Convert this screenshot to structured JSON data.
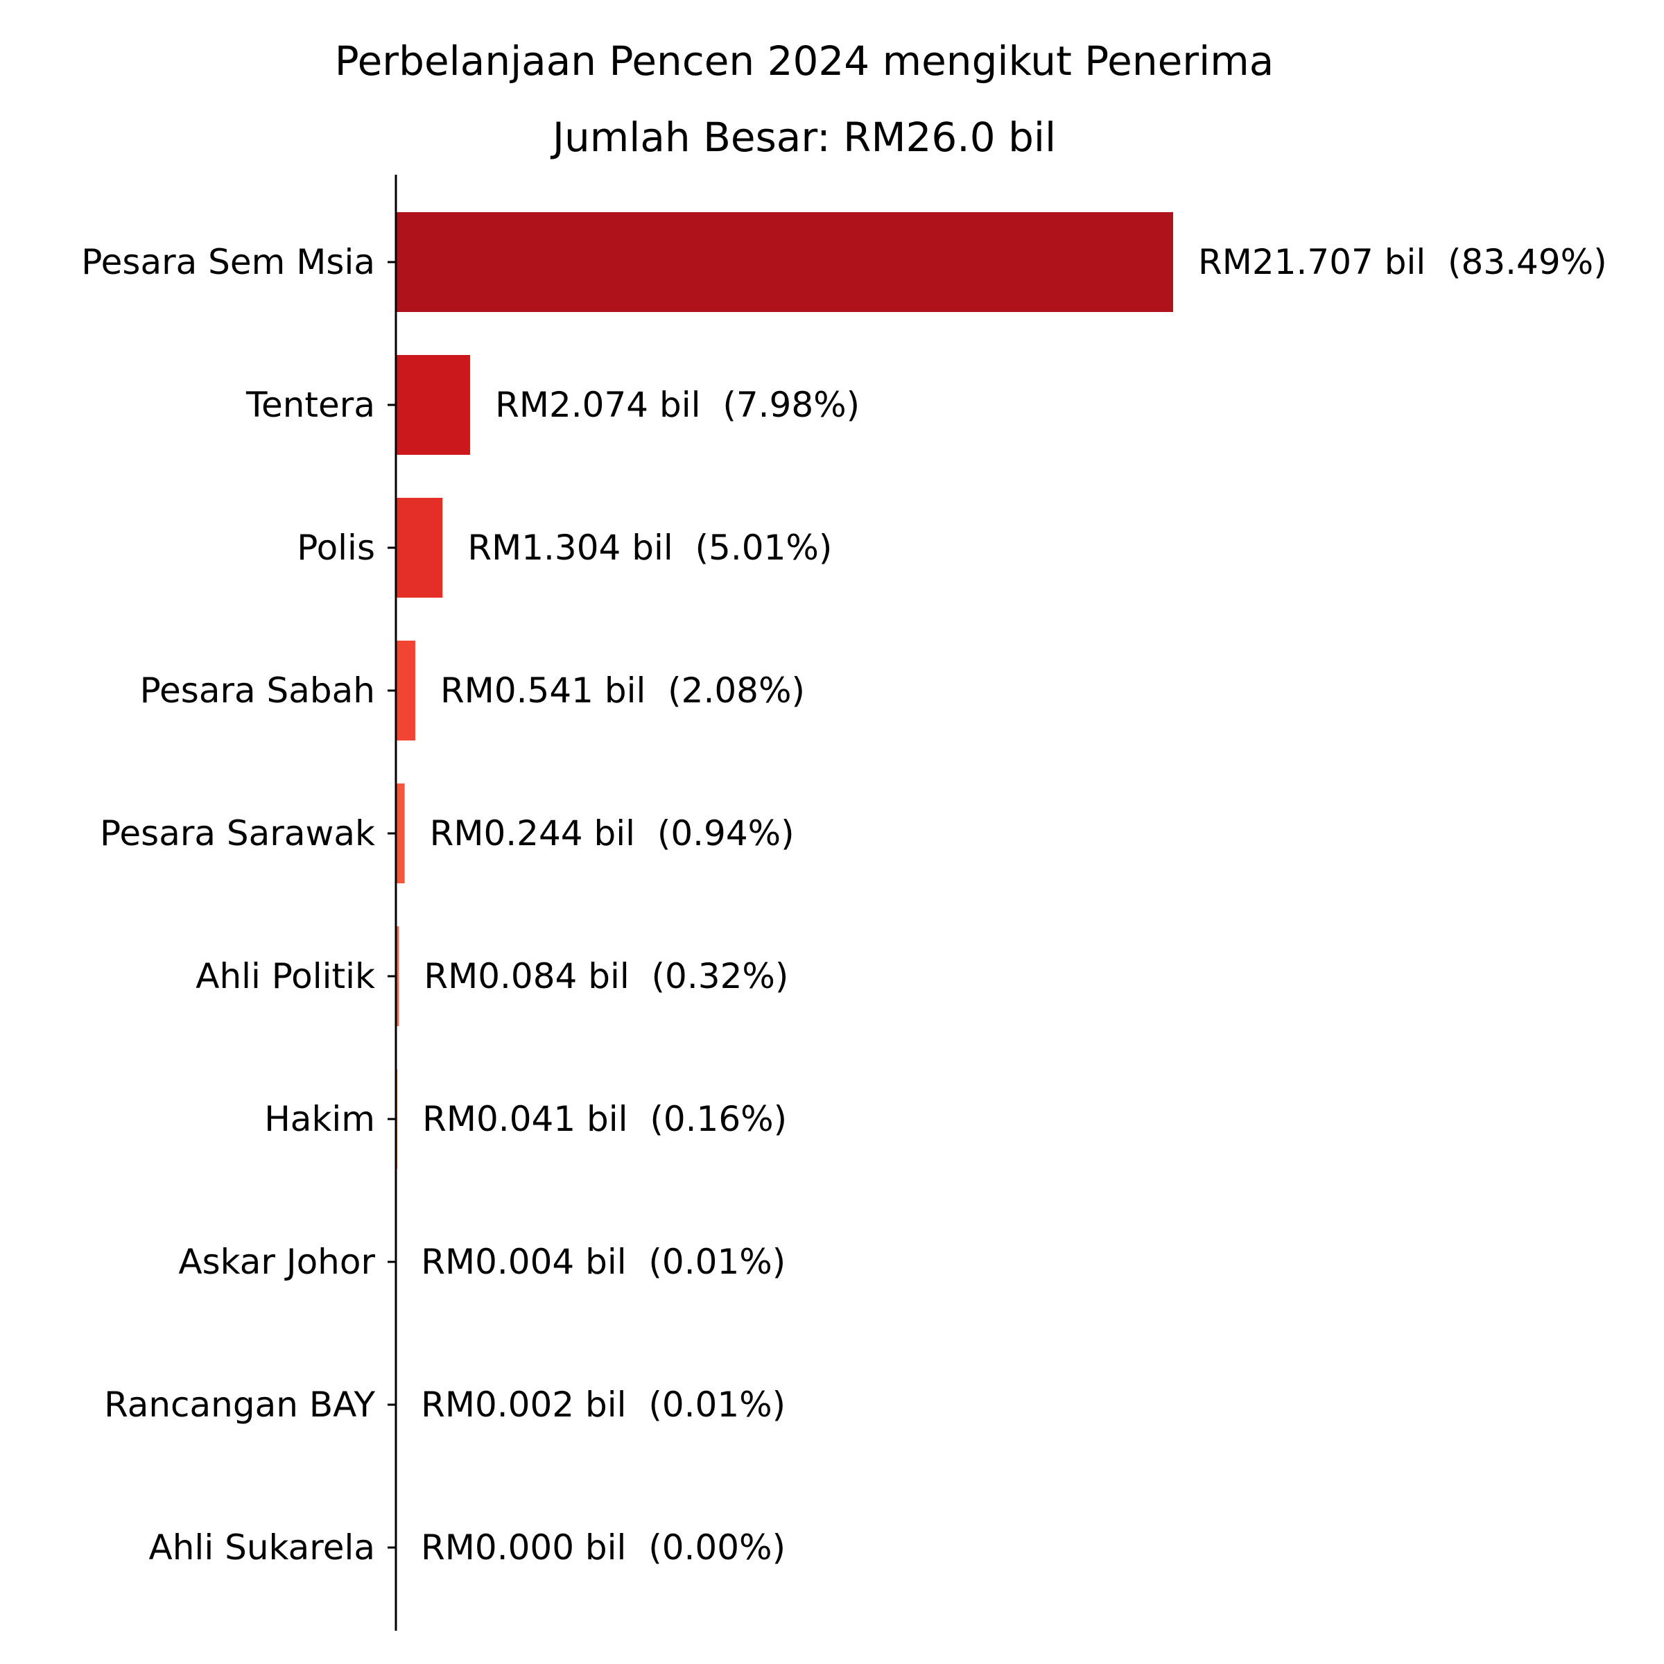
{
  "chart_data": {
    "type": "bar",
    "orientation": "horizontal",
    "title": "Perbelanjaan Pencen 2024 mengikut Penerima",
    "subtitle": "Jumlah Besar: RM26.0 bil",
    "xlabel": "",
    "ylabel": "",
    "xlim": [
      0,
      26.0
    ],
    "grid": false,
    "legend": "none",
    "categories": [
      "Pesara Sem Msia",
      "Tentera",
      "Polis",
      "Pesara Sabah",
      "Pesara Sarawak",
      "Ahli Politik",
      "Hakim",
      "Askar Johor",
      "Rancangan BAY",
      "Ahli Sukarela"
    ],
    "values": [
      21.707,
      2.074,
      1.304,
      0.541,
      0.244,
      0.084,
      0.041,
      0.004,
      0.002,
      0.0
    ],
    "data_labels": [
      "RM21.707 bil  (83.49%)",
      "RM2.074 bil  (7.98%)",
      "RM1.304 bil  (5.01%)",
      "RM0.541 bil  (2.08%)",
      "RM0.244 bil  (0.94%)",
      "RM0.084 bil  (0.32%)",
      "RM0.041 bil  (0.16%)",
      "RM0.004 bil  (0.01%)",
      "RM0.002 bil  (0.01%)",
      "RM0.000 bil  (0.00%)"
    ],
    "colors": [
      "#b0121b",
      "#cb181d",
      "#e32f27",
      "#f14432",
      "#f6563d",
      "#fb6a4a",
      "#fb7d5d",
      "#fc9070",
      "#fca183",
      "#fcb398"
    ],
    "axis_color": "#000000"
  }
}
